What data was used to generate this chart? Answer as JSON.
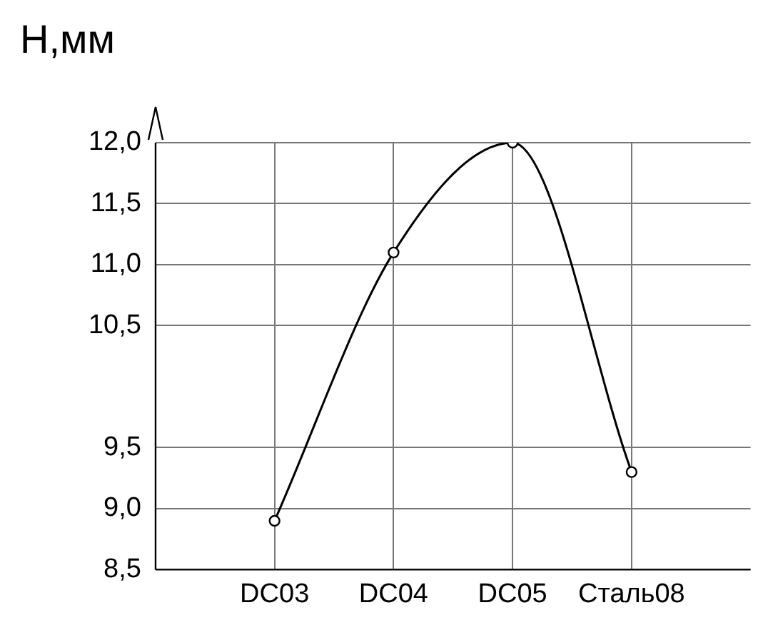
{
  "chart_data": {
    "type": "line",
    "ylabel": "H,мм",
    "categories": [
      "DC03",
      "DC04",
      "DC05",
      "Сталь08"
    ],
    "series": [
      {
        "color": "#000000",
        "values": [
          8.9,
          11.1,
          12.0,
          9.3
        ]
      }
    ],
    "ylim": [
      8.5,
      12.0
    ],
    "yticks": [
      {
        "value": 8.5,
        "label": "8,5"
      },
      {
        "value": 9.0,
        "label": "9,0"
      },
      {
        "value": 9.5,
        "label": "9,5"
      },
      {
        "value": 10.5,
        "label": "10,5"
      },
      {
        "value": 11.0,
        "label": "11,0"
      },
      {
        "value": 11.5,
        "label": "11,5"
      },
      {
        "value": 12.0,
        "label": "12,0"
      }
    ],
    "grid": true,
    "legend": false,
    "marker": "circle",
    "line_style": "solid"
  }
}
